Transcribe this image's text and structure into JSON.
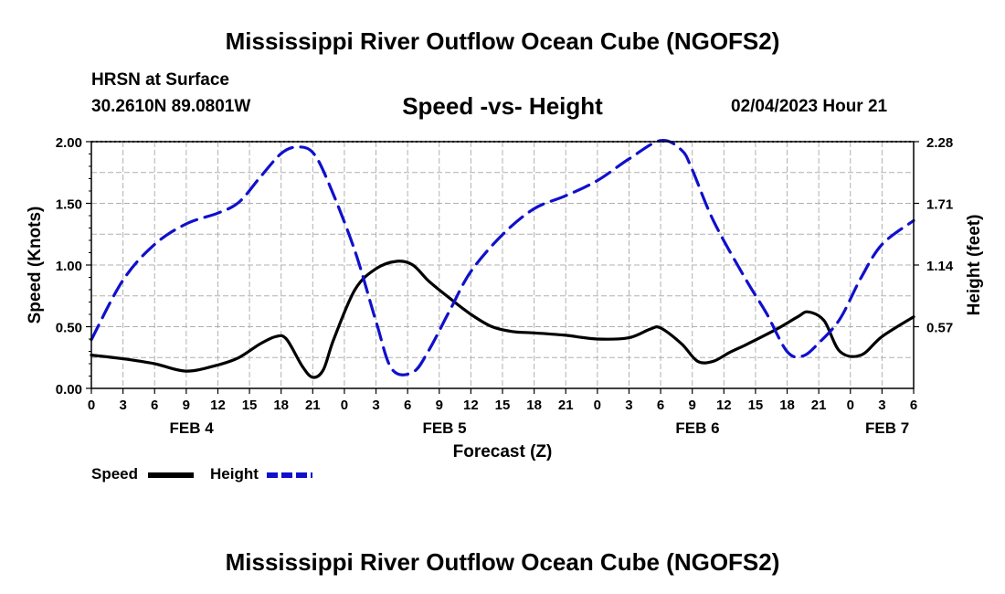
{
  "header": {
    "title": "Mississippi River Outflow Ocean Cube (NGOFS2)",
    "station": "HRSN at Surface",
    "coords": "30.2610N  89.0801W",
    "subtitle": "Speed -vs- Height",
    "datetime": "02/04/2023 Hour 21"
  },
  "footer": {
    "title": "Mississippi River Outflow Ocean Cube (NGOFS2)"
  },
  "legend": {
    "speed_label": "Speed",
    "height_label": "Height"
  },
  "colors": {
    "speed": "#000000",
    "height": "#1010cc",
    "grid": "#b0b0b0"
  },
  "chart_data": {
    "type": "line",
    "title": "Speed -vs- Height",
    "xlabel": "Forecast (Z)",
    "ylabel": "Speed (Knots)",
    "y2label": "Height (feet)",
    "xlim": [
      0,
      78
    ],
    "ylim": [
      0,
      2.0
    ],
    "y2lim": [
      0,
      2.28
    ],
    "x_ticks": [
      0,
      3,
      6,
      9,
      12,
      15,
      18,
      21,
      24,
      27,
      30,
      33,
      36,
      39,
      42,
      45,
      48,
      51,
      54,
      57,
      60,
      63,
      66,
      69,
      72,
      75,
      78
    ],
    "x_tick_labels": [
      "0",
      "3",
      "6",
      "9",
      "12",
      "15",
      "18",
      "21",
      "0",
      "3",
      "6",
      "9",
      "12",
      "15",
      "18",
      "21",
      "0",
      "3",
      "6",
      "9",
      "12",
      "15",
      "18",
      "21",
      "0",
      "3",
      "6"
    ],
    "day_labels": [
      {
        "label": "FEB 4",
        "x": 9.5
      },
      {
        "label": "FEB 5",
        "x": 33.5
      },
      {
        "label": "FEB 6",
        "x": 57.5
      },
      {
        "label": "FEB 7",
        "x": 75.5
      }
    ],
    "y_ticks": [
      0.0,
      0.5,
      1.0,
      1.5,
      2.0
    ],
    "y_tick_labels": [
      "0.00",
      "0.50",
      "1.00",
      "1.50",
      "2.00"
    ],
    "y2_ticks": [
      0.57,
      1.14,
      1.71,
      2.28
    ],
    "y2_tick_labels": [
      "0.57",
      "1.14",
      "1.71",
      "2.28"
    ],
    "series": [
      {
        "name": "Speed",
        "axis": "left",
        "style": "solid",
        "x": [
          0,
          3,
          6,
          9,
          12,
          14,
          16,
          17.5,
          18.5,
          20,
          21,
          22,
          23,
          25,
          27,
          29,
          30.5,
          32,
          34,
          36,
          38,
          40,
          42,
          45,
          48,
          51,
          53,
          54,
          56,
          57.5,
          59,
          60.5,
          62,
          65,
          67,
          68,
          69.5,
          71,
          73,
          75,
          78
        ],
        "values": [
          0.27,
          0.24,
          0.2,
          0.14,
          0.19,
          0.25,
          0.36,
          0.42,
          0.4,
          0.18,
          0.09,
          0.15,
          0.4,
          0.8,
          0.97,
          1.03,
          1.0,
          0.87,
          0.73,
          0.6,
          0.5,
          0.46,
          0.45,
          0.43,
          0.4,
          0.41,
          0.48,
          0.49,
          0.36,
          0.22,
          0.22,
          0.29,
          0.35,
          0.48,
          0.58,
          0.62,
          0.55,
          0.3,
          0.27,
          0.42,
          0.58
        ]
      },
      {
        "name": "Height",
        "axis": "right",
        "style": "dashed",
        "x": [
          0,
          3,
          6,
          9,
          12,
          14,
          16,
          18,
          19.5,
          21,
          22.5,
          25,
          27,
          28.5,
          30.5,
          32,
          34,
          36,
          39,
          42,
          45,
          48,
          51,
          54,
          56,
          57,
          59,
          62,
          64,
          66,
          67.5,
          69,
          71,
          73,
          75,
          78
        ],
        "values": [
          0.45,
          1.0,
          1.33,
          1.52,
          1.62,
          1.72,
          1.95,
          2.17,
          2.23,
          2.18,
          1.9,
          1.27,
          0.62,
          0.18,
          0.15,
          0.35,
          0.72,
          1.08,
          1.42,
          1.66,
          1.78,
          1.92,
          2.12,
          2.29,
          2.2,
          2.02,
          1.55,
          1.02,
          0.7,
          0.34,
          0.3,
          0.42,
          0.64,
          1.02,
          1.33,
          1.55
        ]
      }
    ]
  }
}
